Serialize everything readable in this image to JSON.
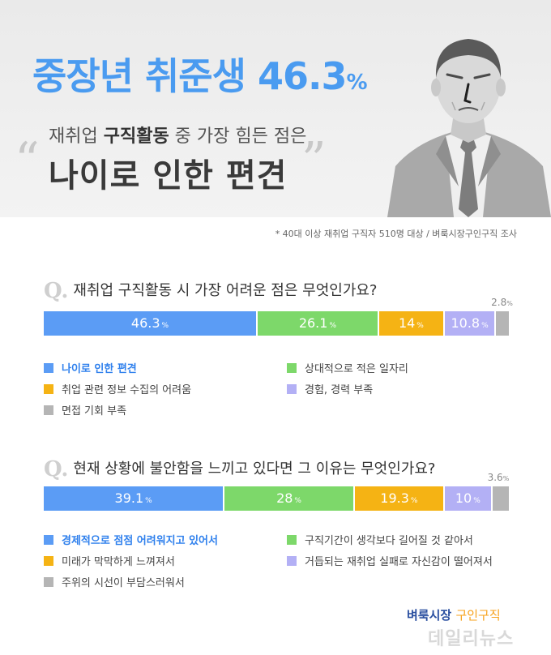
{
  "header": {
    "headline": "중장년 취준생 46.3",
    "headline_unit": "%",
    "sub1_pre": "재취업 ",
    "sub1_bold": "구직활동",
    "sub1_post": " 중 가장 힘든 점은",
    "sub2": "나이로 인한 편견",
    "quote_open": "“",
    "quote_close": "”"
  },
  "source": "* 40대 이상 재취업 구직자 510명 대상 / 벼룩시장구인구직 조사",
  "q_mark": "Q.",
  "unit": "%",
  "colors": {
    "blue": "#5b9cf5",
    "green": "#7dd86a",
    "yellow": "#f5b314",
    "lavender": "#b3b0f5",
    "gray": "#b5b5b5"
  },
  "chart_data": [
    {
      "type": "bar",
      "stacked": "100%",
      "title": "재취업 구직활동 시 가장 어려운 점은 무엇인가요?",
      "series": [
        {
          "name": "나이로 인한 편견",
          "value": 46.3,
          "label": "46.3",
          "color": "#5b9cf5"
        },
        {
          "name": "상대적으로 적은 일자리",
          "value": 26.1,
          "label": "26.1",
          "color": "#7dd86a"
        },
        {
          "name": "취업 관련 정보 수집의 어려움",
          "value": 14,
          "label": "14",
          "color": "#f5b314"
        },
        {
          "name": "경험, 경력 부족",
          "value": 10.8,
          "label": "10.8",
          "color": "#b3b0f5"
        },
        {
          "name": "면접 기회 부족",
          "value": 2.8,
          "label": "2.8",
          "color": "#b5b5b5"
        }
      ],
      "highlight": 0
    },
    {
      "type": "bar",
      "stacked": "100%",
      "title": "현재 상황에 불안함을 느끼고 있다면 그 이유는 무엇인가요?",
      "series": [
        {
          "name": "경제적으로 점점 어려워지고 있어서",
          "value": 39.1,
          "label": "39.1",
          "color": "#5b9cf5"
        },
        {
          "name": "구직기간이 생각보다 길어질 것 같아서",
          "value": 28,
          "label": "28",
          "color": "#7dd86a"
        },
        {
          "name": "미래가 막막하게 느껴져서",
          "value": 19.3,
          "label": "19.3",
          "color": "#f5b314"
        },
        {
          "name": "거듭되는 재취업 실패로 자신감이 떨어져서",
          "value": 10,
          "label": "10",
          "color": "#b3b0f5"
        },
        {
          "name": "주위의 시선이 부담스러워서",
          "value": 3.6,
          "label": "3.6",
          "color": "#b5b5b5"
        }
      ],
      "highlight": 0
    }
  ],
  "logo": {
    "name": "벼룩시장",
    "product": "구인구직"
  },
  "watermark": "데일리뉴스"
}
